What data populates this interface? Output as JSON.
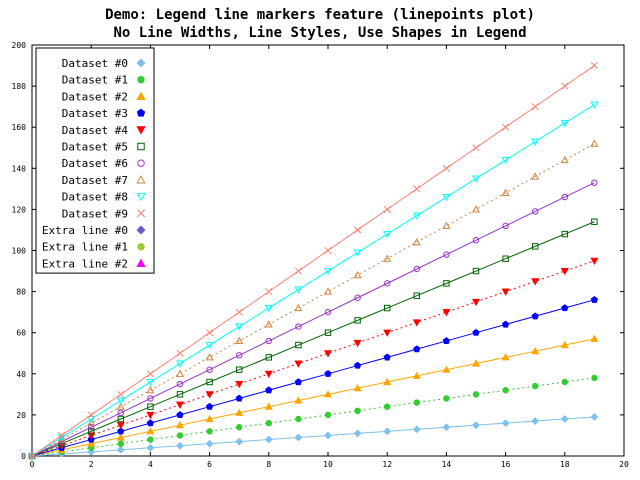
{
  "chart_data": {
    "type": "line",
    "title": "Demo: Legend line markers feature (linepoints plot)",
    "subtitle": "No Line Widths, Line Styles, Use Shapes in Legend",
    "xlim": [
      0,
      20
    ],
    "ylim": [
      0,
      200
    ],
    "x_ticks": [
      0,
      2,
      4,
      6,
      8,
      10,
      12,
      14,
      16,
      18,
      20
    ],
    "y_ticks": [
      0,
      20,
      40,
      60,
      80,
      100,
      120,
      140,
      160,
      180,
      200
    ],
    "grid": false,
    "legend_position": "top-left",
    "x": [
      0,
      1,
      2,
      3,
      4,
      5,
      6,
      7,
      8,
      9,
      10,
      11,
      12,
      13,
      14,
      15,
      16,
      17,
      18,
      19
    ],
    "series": [
      {
        "name": "Dataset #0",
        "color": "#7ec0ee",
        "marker": "diamond",
        "dash": "solid",
        "slope": 1
      },
      {
        "name": "Dataset #1",
        "color": "#32cd32",
        "marker": "circle",
        "dash": "dotted",
        "slope": 2
      },
      {
        "name": "Dataset #2",
        "color": "#ffa500",
        "marker": "triangle-up",
        "dash": "solid",
        "slope": 3
      },
      {
        "name": "Dataset #3",
        "color": "#0000ff",
        "marker": "pentagon",
        "dash": "solid",
        "slope": 4
      },
      {
        "name": "Dataset #4",
        "color": "#ff0000",
        "marker": "triangle-down",
        "dash": "dotted",
        "slope": 5
      },
      {
        "name": "Dataset #5",
        "color": "#006400",
        "marker": "square-open",
        "dash": "solid",
        "slope": 6
      },
      {
        "name": "Dataset #6",
        "color": "#9932cc",
        "marker": "circle-open",
        "dash": "solid",
        "slope": 7
      },
      {
        "name": "Dataset #7",
        "color": "#cd853f",
        "marker": "triangle-up-open",
        "dash": "dotted",
        "slope": 8
      },
      {
        "name": "Dataset #8",
        "color": "#00ffff",
        "marker": "triangle-down-open",
        "dash": "solid",
        "slope": 9
      },
      {
        "name": "Dataset #9",
        "color": "#fa8072",
        "marker": "x",
        "dash": "solid",
        "slope": 10
      }
    ],
    "legend": [
      {
        "label": "Dataset #0",
        "color": "#7ec0ee",
        "marker": "diamond"
      },
      {
        "label": "Dataset #1",
        "color": "#32cd32",
        "marker": "circle"
      },
      {
        "label": "Dataset #2",
        "color": "#ffa500",
        "marker": "triangle-up"
      },
      {
        "label": "Dataset #3",
        "color": "#0000ff",
        "marker": "pentagon"
      },
      {
        "label": "Dataset #4",
        "color": "#ff0000",
        "marker": "triangle-down"
      },
      {
        "label": "Dataset #5",
        "color": "#006400",
        "marker": "square-open"
      },
      {
        "label": "Dataset #6",
        "color": "#9932cc",
        "marker": "circle-open"
      },
      {
        "label": "Dataset #7",
        "color": "#cd853f",
        "marker": "triangle-up-open"
      },
      {
        "label": "Dataset #8",
        "color": "#00ffff",
        "marker": "triangle-down-open"
      },
      {
        "label": "Dataset #9",
        "color": "#fa8072",
        "marker": "x"
      },
      {
        "label": "Extra line #0",
        "color": "#6a5acd",
        "marker": "diamond"
      },
      {
        "label": "Extra line #1",
        "color": "#9acd32",
        "marker": "circle"
      },
      {
        "label": "Extra line #2",
        "color": "#ff00ff",
        "marker": "triangle-up"
      }
    ]
  }
}
